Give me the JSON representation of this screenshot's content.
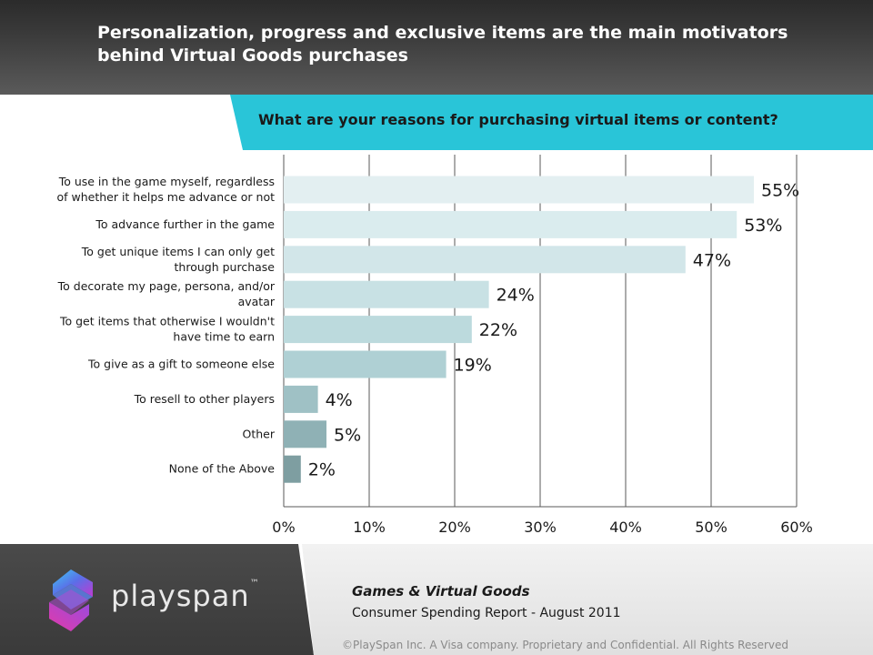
{
  "header": {
    "title": "Personalization, progress and exclusive items are the main motivators behind Virtual Goods purchases"
  },
  "question": "What are your reasons for purchasing  virtual items or content?",
  "chart_data": {
    "type": "bar",
    "orientation": "horizontal",
    "categories": [
      [
        "To use in the game myself, regardless",
        "of whether it helps me advance or not"
      ],
      [
        "To advance further in  the game"
      ],
      [
        "To get unique items I can only get",
        "through purchase"
      ],
      [
        "To decorate my page, persona, and/or",
        "avatar"
      ],
      [
        "To get items that otherwise I wouldn't",
        "have time to earn"
      ],
      [
        "To give as a gift  to someone else"
      ],
      [
        "To resell to other players"
      ],
      [
        "Other"
      ],
      [
        "None of the Above"
      ]
    ],
    "values": [
      55,
      53,
      47,
      24,
      22,
      19,
      4,
      5,
      2
    ],
    "value_labels": [
      "55%",
      "53%",
      "47%",
      "24%",
      "22%",
      "19%",
      "4%",
      "5%",
      "2%"
    ],
    "bar_colors": [
      "#e3eff1",
      "#daecee",
      "#d2e6e9",
      "#c8e1e4",
      "#bcdadd",
      "#afd0d4",
      "#9fc1c5",
      "#8fb1b5",
      "#7e9ea1"
    ],
    "xaxis": {
      "ticks": [
        0,
        10,
        20,
        30,
        40,
        50,
        60
      ],
      "tick_labels": [
        "0%",
        "10%",
        "20%",
        "30%",
        "40%",
        "50%",
        "60%"
      ],
      "min": 0,
      "max": 60
    },
    "grid": true
  },
  "footer": {
    "logo_text": "playspan",
    "logo_tm": "™",
    "report_title": "Games & Virtual Goods",
    "report_subtitle": "Consumer Spending Report  - August 2011",
    "copyright": "©PlaySpan Inc. A Visa company. Proprietary and Confidential. All Rights Reserved"
  }
}
